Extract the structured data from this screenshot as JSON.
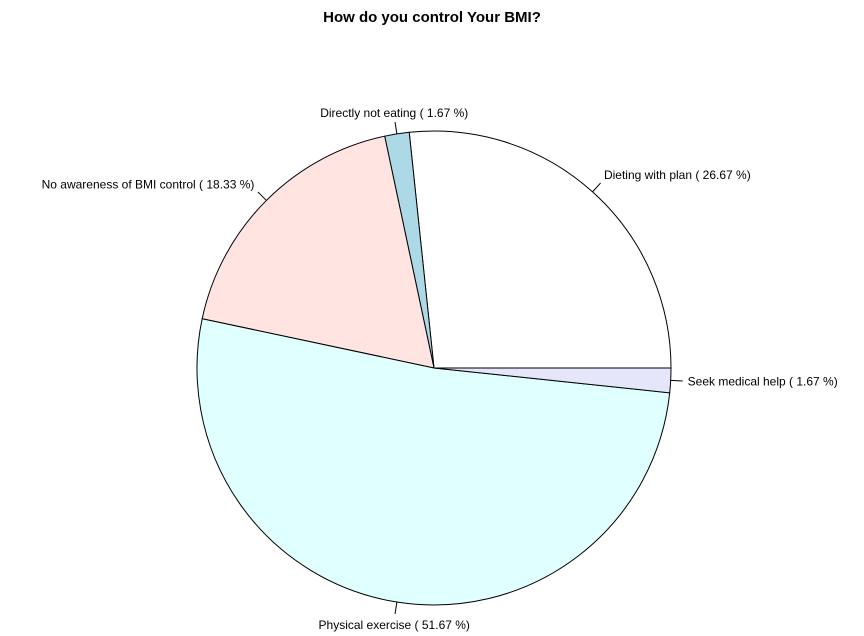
{
  "chart_data": {
    "type": "pie",
    "title": "How do you control Your BMI?",
    "slices": [
      {
        "label": "Dieting with plan ( 26.67 %)",
        "value": 26.67,
        "color": "#ffffff"
      },
      {
        "label": "Directly not eating ( 1.67 %)",
        "value": 1.67,
        "color": "#add8e6"
      },
      {
        "label": "No awareness of BMI control ( 18.33 %)",
        "value": 18.33,
        "color": "#ffe4e1"
      },
      {
        "label": "Physical exercise ( 51.67 %)",
        "value": 51.67,
        "color": "#e0ffff"
      },
      {
        "label": "Seek medical help ( 1.67 %)",
        "value": 1.67,
        "color": "#e6e6fa"
      }
    ],
    "direction": "counter-clockwise",
    "start": "3 o'clock"
  }
}
